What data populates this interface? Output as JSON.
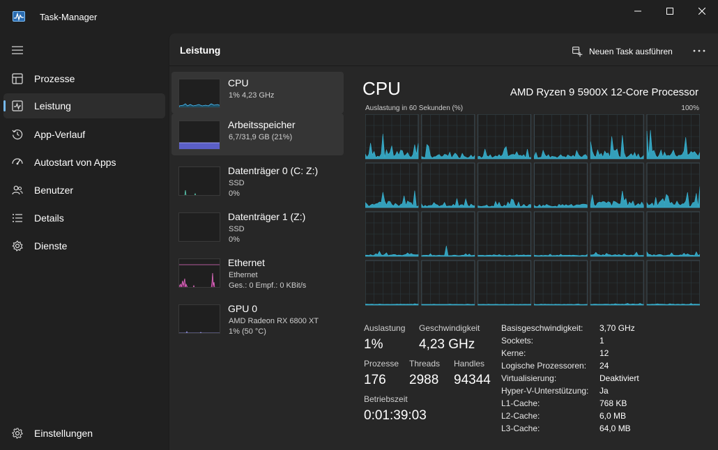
{
  "window": {
    "title": "Task-Manager"
  },
  "sidebar": {
    "items": [
      {
        "label": "Prozesse",
        "icon": "processes-icon"
      },
      {
        "label": "Leistung",
        "icon": "performance-icon",
        "active": true
      },
      {
        "label": "App-Verlauf",
        "icon": "history-icon"
      },
      {
        "label": "Autostart von Apps",
        "icon": "startup-icon"
      },
      {
        "label": "Benutzer",
        "icon": "users-icon"
      },
      {
        "label": "Details",
        "icon": "details-icon"
      },
      {
        "label": "Dienste",
        "icon": "services-icon"
      }
    ],
    "settings_label": "Einstellungen"
  },
  "header": {
    "title": "Leistung",
    "new_task_label": "Neuen Task ausführen"
  },
  "resources": [
    {
      "name": "CPU",
      "sub1": "1%  4,23 GHz",
      "sub2": "",
      "color": "#4cc2ff"
    },
    {
      "name": "Arbeitsspeicher",
      "sub1": "6,7/31,9 GB (21%)",
      "sub2": "",
      "color": "#8b8df0"
    },
    {
      "name": "Datenträger 0 (C: Z:)",
      "sub1": "SSD",
      "sub2": "0%",
      "color": "#5fcfb6"
    },
    {
      "name": "Datenträger 1 (Z:)",
      "sub1": "SSD",
      "sub2": "0%",
      "color": "#5fcfb6"
    },
    {
      "name": "Ethernet",
      "sub1": "Ethernet",
      "sub2": "Ges.: 0 Empf.: 0 KBit/s",
      "color": "#e66fc6"
    },
    {
      "name": "GPU 0",
      "sub1": "AMD Radeon RX 6800 XT",
      "sub2": "1%  (50 °C)",
      "color": "#9e9ef2"
    }
  ],
  "detail": {
    "title": "CPU",
    "processor": "AMD Ryzen 9 5900X 12-Core Processor",
    "graph_label": "Auslastung in 60 Sekunden (%)",
    "graph_max": "100%",
    "graph_color": "#38b6d6",
    "core_count": 24,
    "stats": {
      "auslastung_label": "Auslastung",
      "auslastung_value": "1%",
      "geschwindigkeit_label": "Geschwindigkeit",
      "geschwindigkeit_value": "4,23 GHz",
      "prozesse_label": "Prozesse",
      "prozesse_value": "176",
      "threads_label": "Threads",
      "threads_value": "2988",
      "handles_label": "Handles",
      "handles_value": "94344",
      "betriebszeit_label": "Betriebszeit",
      "betriebszeit_value": "0:01:39:03"
    },
    "specs": [
      {
        "label": "Basisgeschwindigkeit:",
        "value": "3,70 GHz"
      },
      {
        "label": "Sockets:",
        "value": "1"
      },
      {
        "label": "Kerne:",
        "value": "12"
      },
      {
        "label": "Logische Prozessoren:",
        "value": "24"
      },
      {
        "label": "Virtualisierung:",
        "value": "Deaktiviert"
      },
      {
        "label": "Hyper-V-Unterstützung:",
        "value": "Ja"
      },
      {
        "label": "L1-Cache:",
        "value": "768 KB"
      },
      {
        "label": "L2-Cache:",
        "value": "6,0 MB"
      },
      {
        "label": "L3-Cache:",
        "value": "64,0 MB"
      }
    ]
  }
}
